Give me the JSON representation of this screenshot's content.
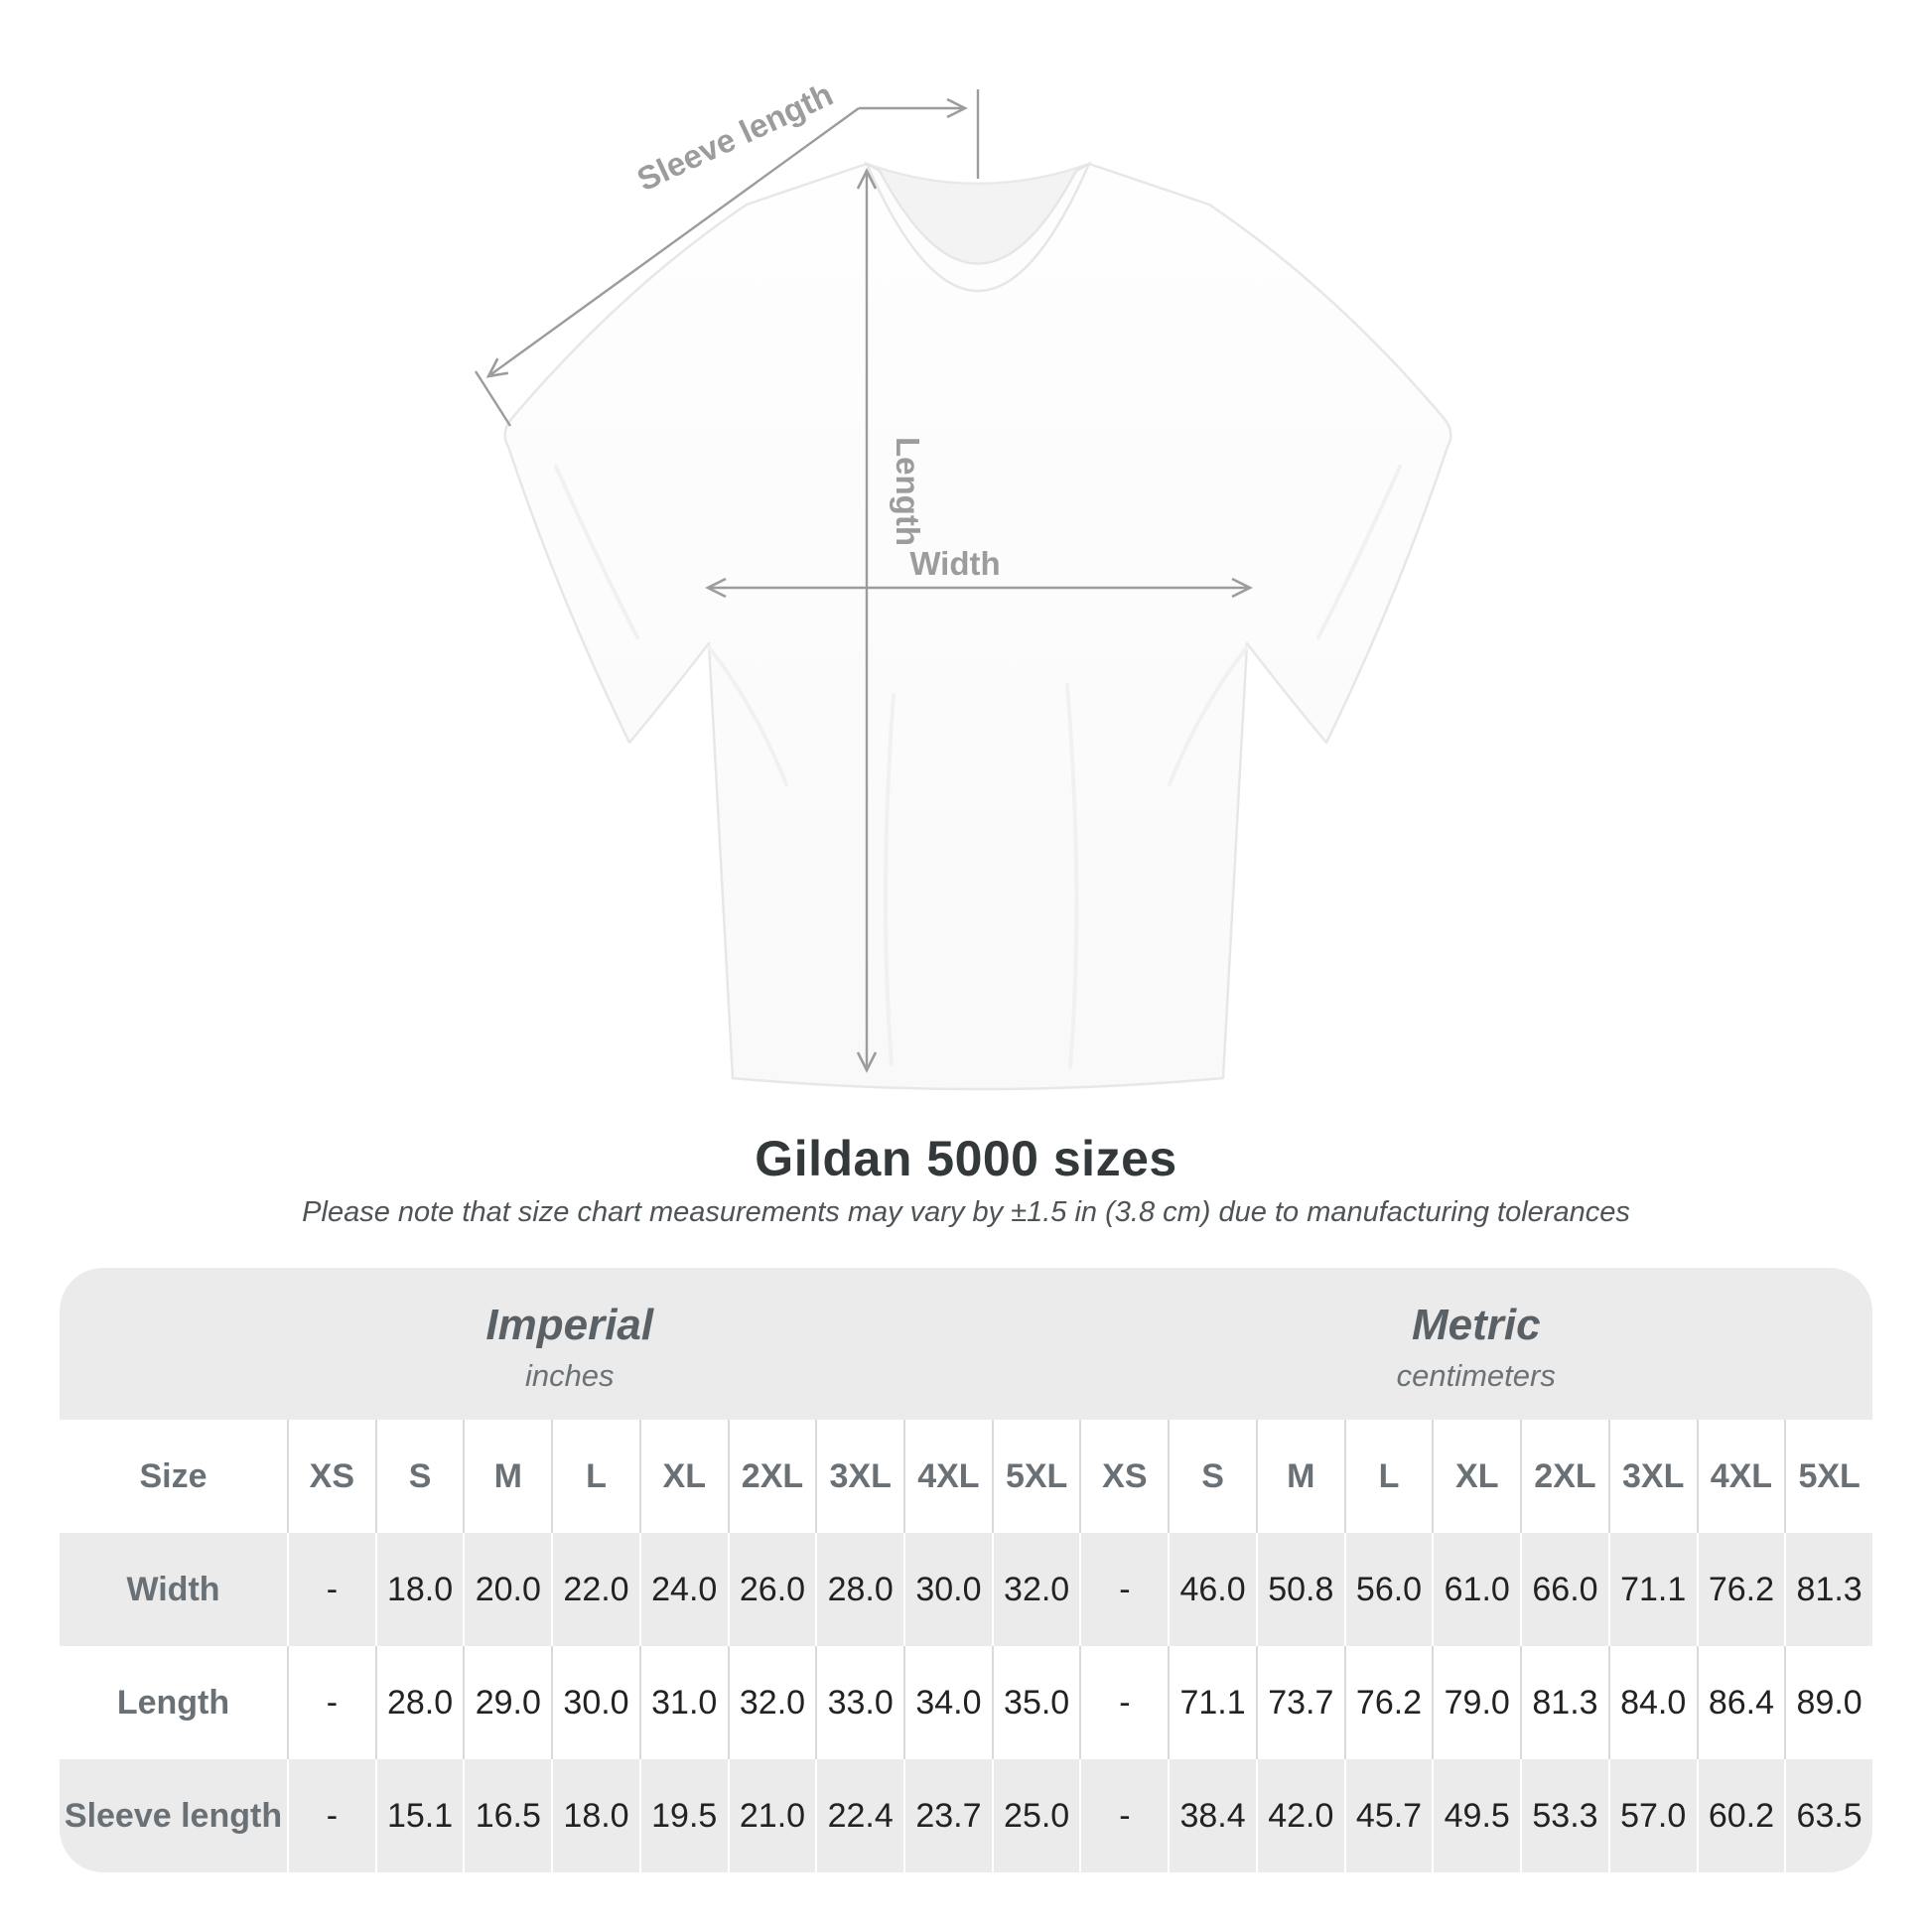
{
  "diagram": {
    "sleeve_length_label": "Sleeve length",
    "length_label": "Length",
    "width_label": "Width",
    "annotation_color": "#9c9c9c"
  },
  "chart_data": {
    "type": "table",
    "title": "Gildan 5000 sizes",
    "subtitle": "Please note that size chart measurements may vary by ±1.5 in (3.8 cm) due to manufacturing tolerances",
    "corner_label": "Size",
    "unit_groups": [
      {
        "label": "Imperial",
        "unit": "inches"
      },
      {
        "label": "Metric",
        "unit": "centimeters"
      }
    ],
    "column_sizes": [
      "XS",
      "S",
      "M",
      "L",
      "XL",
      "2XL",
      "3XL",
      "4XL",
      "5XL"
    ],
    "rows": [
      {
        "label": "Width",
        "imperial": [
          "-",
          "18.0",
          "20.0",
          "22.0",
          "24.0",
          "26.0",
          "28.0",
          "30.0",
          "32.0"
        ],
        "metric": [
          "-",
          "46.0",
          "50.8",
          "56.0",
          "61.0",
          "66.0",
          "71.1",
          "76.2",
          "81.3"
        ]
      },
      {
        "label": "Length",
        "imperial": [
          "-",
          "28.0",
          "29.0",
          "30.0",
          "31.0",
          "32.0",
          "33.0",
          "34.0",
          "35.0"
        ],
        "metric": [
          "-",
          "71.1",
          "73.7",
          "76.2",
          "79.0",
          "81.3",
          "84.0",
          "86.4",
          "89.0"
        ]
      },
      {
        "label": "Sleeve length",
        "imperial": [
          "-",
          "15.1",
          "16.5",
          "18.0",
          "19.5",
          "21.0",
          "22.4",
          "23.7",
          "25.0"
        ],
        "metric": [
          "-",
          "38.4",
          "42.0",
          "45.7",
          "49.5",
          "53.3",
          "57.0",
          "60.2",
          "63.5"
        ]
      }
    ],
    "colors": {
      "band_gray": "#ebebeb",
      "divider_white_row": "#dadada",
      "divider_gray_row": "#ffffff",
      "header_text": "#6a7176",
      "value_text": "#222222",
      "title_text": "#33383b",
      "annotation": "#9c9c9c"
    }
  }
}
